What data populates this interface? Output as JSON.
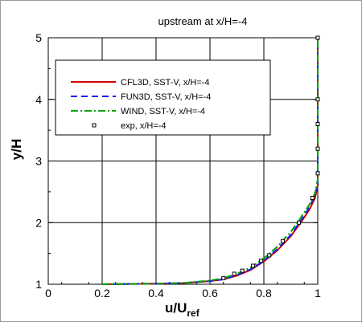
{
  "chart_data": {
    "type": "line",
    "title": "upstream at x/H=-4",
    "xlabel": "u/U",
    "xlabel_sub": "ref",
    "ylabel": "y/H",
    "xlim": [
      0,
      1
    ],
    "ylim": [
      1,
      5
    ],
    "x_ticks": [
      0,
      0.2,
      0.4,
      0.6,
      0.8,
      1
    ],
    "x_tick_labels": [
      "0",
      "0.2",
      "0.4",
      "0.6",
      "0.8",
      "1"
    ],
    "y_ticks": [
      1,
      2,
      3,
      4,
      5
    ],
    "y_tick_labels": [
      "1",
      "2",
      "3",
      "4",
      "5"
    ],
    "grid": true,
    "legend_position": "upper-left",
    "series": [
      {
        "name": "CFL3D, SST-V, x/H=-4",
        "color": "#cc0000",
        "style": "solid",
        "x": [
          0.2,
          0.4,
          0.5,
          0.6,
          0.65,
          0.7,
          0.75,
          0.8,
          0.85,
          0.9,
          0.94,
          0.97,
          0.99,
          1.0,
          1.0,
          1.0,
          1.0,
          1.0
        ],
        "y": [
          1.0,
          1.01,
          1.02,
          1.05,
          1.08,
          1.14,
          1.23,
          1.37,
          1.55,
          1.78,
          2.02,
          2.22,
          2.4,
          2.6,
          3.0,
          3.5,
          4.0,
          5.0
        ]
      },
      {
        "name": "FUN3D, SST-V, x/H=-4",
        "color": "#1a1aff",
        "style": "dashed",
        "x": [
          0.2,
          0.4,
          0.5,
          0.6,
          0.65,
          0.7,
          0.75,
          0.8,
          0.85,
          0.9,
          0.94,
          0.97,
          0.99,
          1.0,
          1.0,
          1.0,
          1.0,
          1.0
        ],
        "y": [
          1.0,
          1.01,
          1.02,
          1.05,
          1.08,
          1.15,
          1.24,
          1.38,
          1.57,
          1.8,
          2.05,
          2.26,
          2.45,
          2.65,
          3.0,
          3.5,
          4.0,
          5.0
        ]
      },
      {
        "name": "WIND, SST-V, x/H=-4",
        "color": "#00a000",
        "style": "dashdot",
        "x": [
          0.2,
          0.4,
          0.5,
          0.6,
          0.65,
          0.7,
          0.75,
          0.8,
          0.85,
          0.9,
          0.94,
          0.97,
          0.99,
          1.0,
          1.0,
          1.0,
          1.0,
          1.0
        ],
        "y": [
          1.0,
          1.01,
          1.02,
          1.06,
          1.1,
          1.17,
          1.27,
          1.42,
          1.61,
          1.85,
          2.1,
          2.3,
          2.48,
          2.7,
          3.0,
          3.5,
          4.0,
          5.0
        ]
      },
      {
        "name": "exp, x/H=-4",
        "color": "#000000",
        "style": "markers",
        "x": [
          0.65,
          0.69,
          0.72,
          0.76,
          0.79,
          0.82,
          0.87,
          0.93,
          0.98,
          1.0,
          1.0,
          1.0,
          1.0,
          1.0
        ],
        "y": [
          1.1,
          1.17,
          1.22,
          1.3,
          1.38,
          1.47,
          1.7,
          2.0,
          2.4,
          2.8,
          3.2,
          3.6,
          4.0,
          5.0
        ]
      }
    ]
  }
}
